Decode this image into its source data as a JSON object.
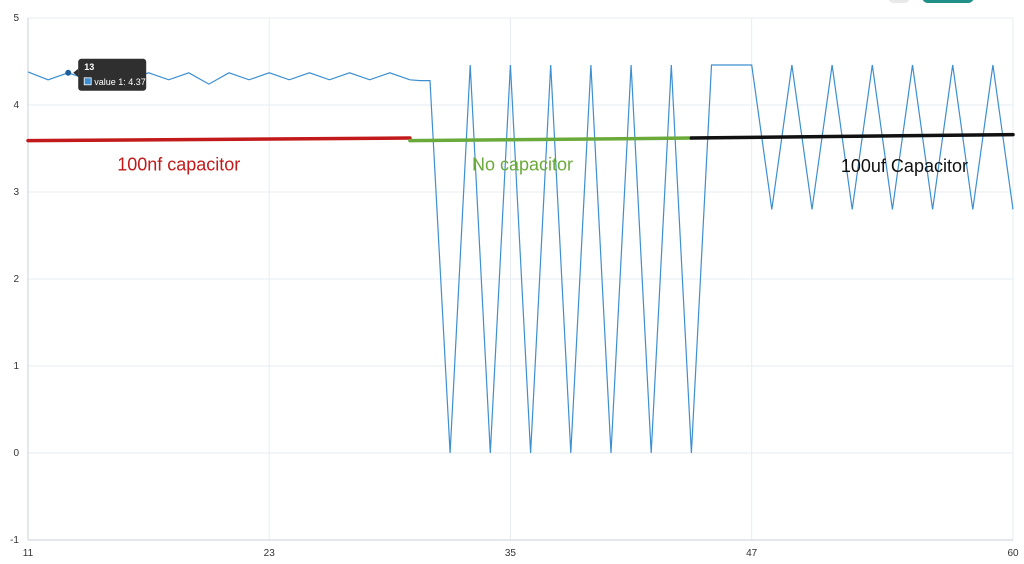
{
  "chart_data": {
    "type": "line",
    "x_ticks": [
      11,
      23,
      35,
      47,
      60
    ],
    "y_ticks": [
      -1,
      0,
      1,
      2,
      3,
      4,
      5
    ],
    "xlim": [
      11,
      60
    ],
    "ylim": [
      -1,
      5
    ],
    "grid": true,
    "series": [
      {
        "color": "#3d8fd0",
        "x": [
          11,
          12,
          13,
          14,
          15,
          16,
          17,
          18,
          19,
          20,
          21,
          22,
          23,
          24,
          25,
          26,
          27,
          28,
          29,
          30,
          30.5,
          31,
          32,
          33,
          34,
          35,
          36,
          37,
          38,
          39,
          40,
          41,
          42,
          43,
          44,
          45,
          46,
          47,
          48,
          49,
          50,
          51,
          52,
          53,
          54,
          55,
          56,
          57,
          58,
          59,
          60
        ],
        "y": [
          4.38,
          4.29,
          4.37,
          4.29,
          4.37,
          4.29,
          4.37,
          4.29,
          4.37,
          4.24,
          4.37,
          4.29,
          4.37,
          4.29,
          4.37,
          4.29,
          4.37,
          4.29,
          4.37,
          4.29,
          4.28,
          4.28,
          0,
          4.46,
          0,
          4.46,
          0,
          4.46,
          0,
          4.46,
          0,
          4.46,
          0,
          4.46,
          0,
          4.46,
          4.46,
          4.46,
          2.8,
          4.46,
          2.8,
          4.46,
          2.8,
          4.46,
          2.8,
          4.46,
          2.8,
          4.46,
          2.8,
          4.46,
          2.8
        ]
      }
    ],
    "annotations": [
      {
        "text": "100nf capacitor",
        "color": "#c21a1a",
        "x_start": 11,
        "x_end": 30,
        "y_start": 3.59,
        "y_end": 3.62,
        "label_x": 18.5,
        "label_y": 3.25
      },
      {
        "text": "No capacitor",
        "color": "#6aaa3a",
        "x_start": 30,
        "x_end": 44,
        "y_start": 3.59,
        "y_end": 3.62,
        "label_x": 35.6,
        "label_y": 3.25
      },
      {
        "text": "100uf Capacitor",
        "color": "#111111",
        "x_start": 44,
        "x_end": 60,
        "y_start": 3.62,
        "y_end": 3.66,
        "label_x": 54.6,
        "label_y": 3.23
      }
    ],
    "tooltip": {
      "title": "13",
      "label": "value 1: 4.37",
      "x": 13,
      "y": 4.37
    }
  },
  "colors": {
    "grid": "#e6ecf2",
    "axis": "#c8d0d8",
    "tooltip_bg": "#2f2f2f",
    "top_control": "#1f8f88"
  }
}
